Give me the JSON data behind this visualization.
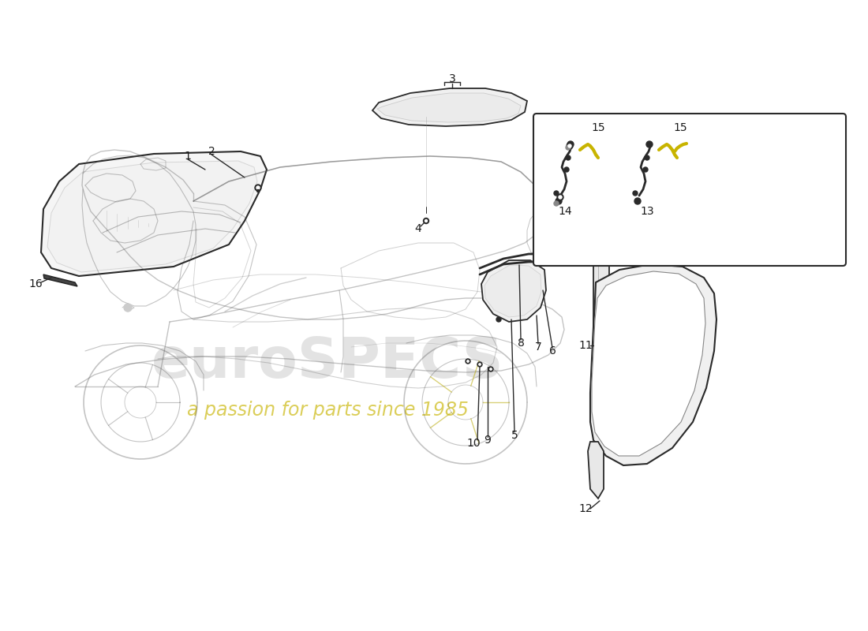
{
  "background_color": "#ffffff",
  "line_color": "#2a2a2a",
  "light_line_color": "#888888",
  "figure_width": 11.0,
  "figure_height": 8.0,
  "watermark_color": "#d4d4d4",
  "tagline_color": "#c8b400",
  "car_alpha": 0.35
}
